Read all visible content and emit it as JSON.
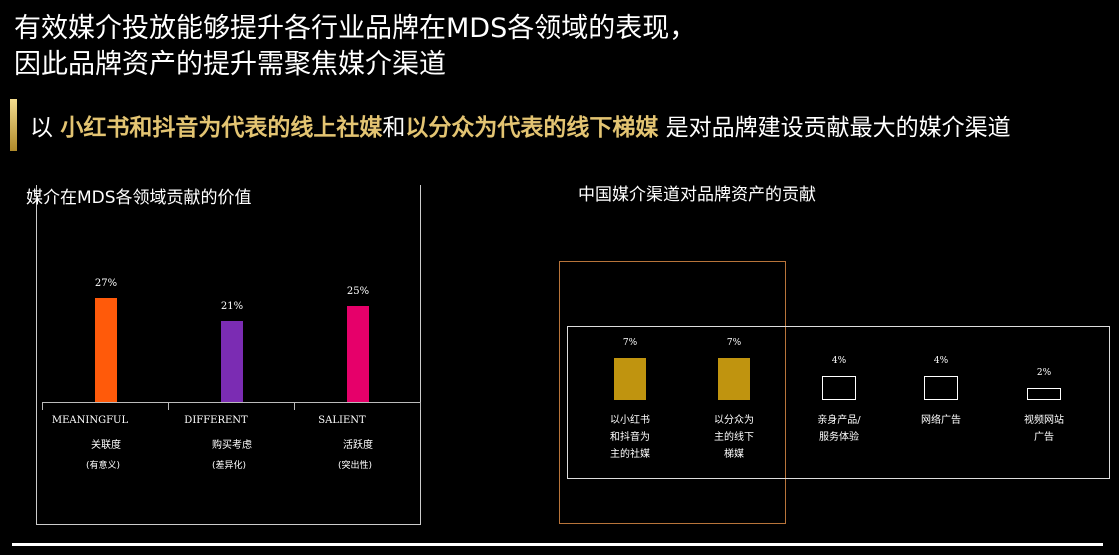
{
  "header": {
    "title_line1": "有效媒介投放能够提升各行业品牌在MDS各领域的表现，",
    "title_line2": "因此品牌资产的提升需聚焦媒介渠道"
  },
  "subtitle": {
    "prefix": "以 ",
    "highlight1": "小红书和抖音为代表的线上社媒",
    "connector": "和",
    "highlight2": "以分众为代表的线下梯媒",
    "suffix": " 是对品牌建设贡献最大的媒介渠道"
  },
  "colors": {
    "gold_text": "#e3c472",
    "bar_meaningful": "#ff5a0a",
    "bar_different": "#7b2cb3",
    "bar_salient": "#e6006a",
    "channel_gold": "#c0940f",
    "highlight_frame": "#b8743a"
  },
  "chart_data": [
    {
      "type": "bar",
      "title": "媒介在MDS各领域贡献的价值",
      "categories": [
        "MEANINGFUL",
        "DIFFERENT",
        "SALIENT"
      ],
      "categories_cn": [
        "关联度",
        "购买考虑",
        "活跃度"
      ],
      "categories_sub": [
        "(有意义)",
        "(差异化)",
        "(突出性)"
      ],
      "values": [
        27,
        21,
        25
      ],
      "value_labels": [
        "27%",
        "21%",
        "25%"
      ],
      "unit": "%"
    },
    {
      "type": "bar",
      "title": "中国媒介渠道对品牌资产的贡献",
      "categories": [
        "以小红书\n和抖音为\n主的社媒",
        "以分众为\n主的线下\n梯媒",
        "亲身产品/\n服务体验",
        "网络广告",
        "视频网站\n广告"
      ],
      "values": [
        7,
        7,
        4,
        4,
        2
      ],
      "value_labels": [
        "7%",
        "7%",
        "4%",
        "4%",
        "2%"
      ],
      "highlighted": [
        true,
        true,
        false,
        false,
        false
      ],
      "unit": "%"
    }
  ]
}
